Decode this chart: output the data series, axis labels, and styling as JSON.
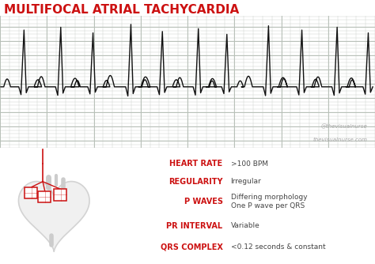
{
  "title": "MULTIFOCAL ATRIAL TACHYCARDIA",
  "title_color": "#cc1111",
  "title_fontsize": 11,
  "ecg_bg_color": "#d8ddd8",
  "ecg_grid_minor_color": "#c8cec8",
  "ecg_grid_major_color": "#b8c0b8",
  "ecg_line_color": "#111111",
  "bottom_bar_color": "#b0ccd4",
  "watermark1": "@thevisualnurse",
  "watermark2": "thevisualnurse.com",
  "watermark_color": "#999999",
  "labels": [
    "HEART RATE",
    "REGULARITY",
    "P WAVES",
    "PR INTERVAL",
    "QRS COMPLEX"
  ],
  "label_color": "#cc1111",
  "values": [
    ">100 BPM",
    "Irregular",
    "Differing morphology\nOne P wave per QRS",
    "Variable",
    "<0.12 seconds & constant"
  ],
  "value_color": "#444444",
  "bg_color": "#ffffff",
  "label_fontsize": 7.0,
  "value_fontsize": 6.5
}
